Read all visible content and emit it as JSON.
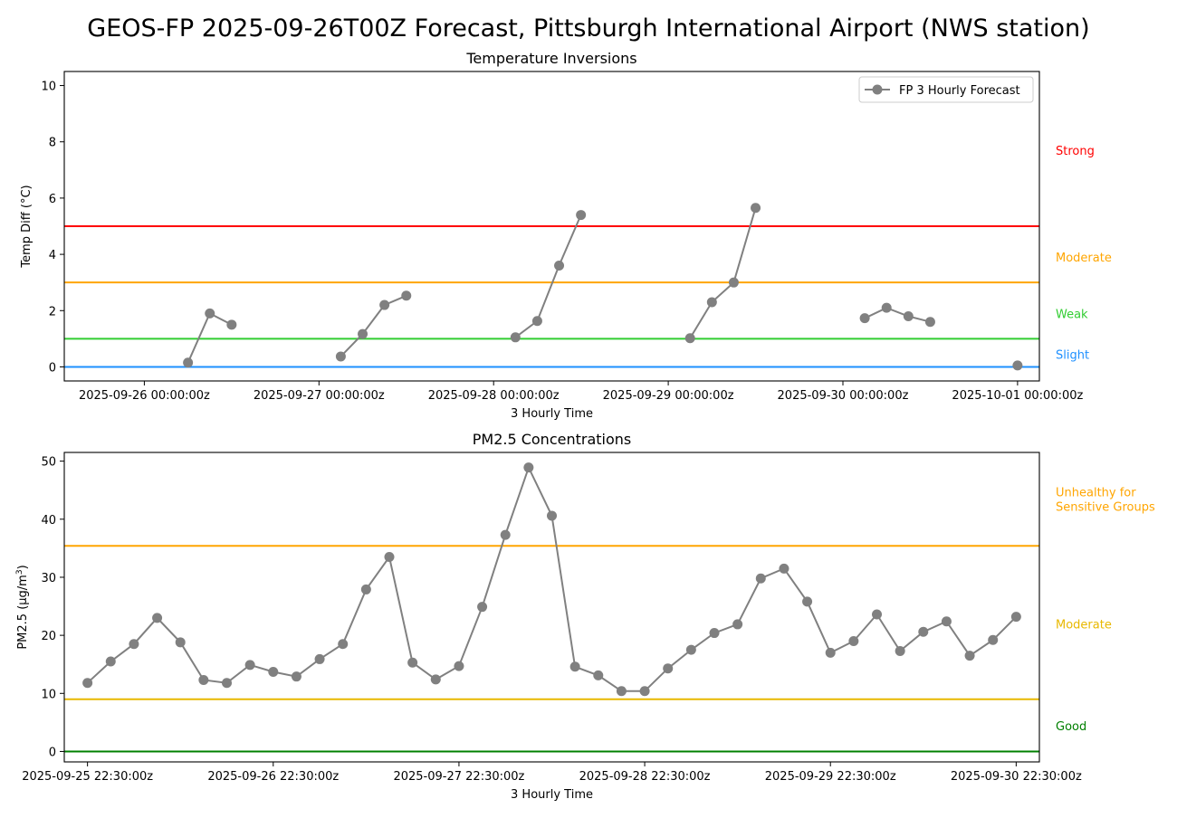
{
  "page": {
    "suptitle": "GEOS-FP 2025-09-26T00Z Forecast, Pittsburgh International Airport (NWS station)"
  },
  "chart_data": [
    {
      "type": "line",
      "title": "Temperature Inversions",
      "xlabel": "3 Hourly Time",
      "ylabel": "Temp Diff (°C)",
      "x_is_time": true,
      "xlim": [
        "2025-09-25T13:00:00Z",
        "2025-10-01T03:00:00Z"
      ],
      "ylim": [
        -0.5,
        10.5
      ],
      "yticks": [
        0,
        2,
        4,
        6,
        8,
        10
      ],
      "xtick_labels": [
        {
          "t": "2025-09-26T00:00:00Z",
          "label": "2025-09-26 00:00:00z"
        },
        {
          "t": "2025-09-27T00:00:00Z",
          "label": "2025-09-27 00:00:00z"
        },
        {
          "t": "2025-09-28T00:00:00Z",
          "label": "2025-09-28 00:00:00z"
        },
        {
          "t": "2025-09-29T00:00:00Z",
          "label": "2025-09-29 00:00:00z"
        },
        {
          "t": "2025-09-30T00:00:00Z",
          "label": "2025-09-30 00:00:00z"
        },
        {
          "t": "2025-10-01T00:00:00Z",
          "label": "2025-10-01 00:00:00z"
        }
      ],
      "legend": {
        "label": "FP 3 Hourly Forecast",
        "position": "upper right"
      },
      "series": [
        {
          "name": "FP 3 Hourly Forecast",
          "color": "#808080",
          "points": [
            {
              "t": "2025-09-26T06:00:00Z",
              "y": 0.15
            },
            {
              "t": "2025-09-26T09:00:00Z",
              "y": 1.9
            },
            {
              "t": "2025-09-26T12:00:00Z",
              "y": 1.5
            },
            {
              "t": "2025-09-26T15:00:00Z",
              "y": null
            },
            {
              "t": "2025-09-27T03:00:00Z",
              "y": 0.37
            },
            {
              "t": "2025-09-27T06:00:00Z",
              "y": 1.17
            },
            {
              "t": "2025-09-27T09:00:00Z",
              "y": 2.2
            },
            {
              "t": "2025-09-27T12:00:00Z",
              "y": 2.53
            },
            {
              "t": "2025-09-27T15:00:00Z",
              "y": null
            },
            {
              "t": "2025-09-28T03:00:00Z",
              "y": 1.05
            },
            {
              "t": "2025-09-28T06:00:00Z",
              "y": 1.63
            },
            {
              "t": "2025-09-28T09:00:00Z",
              "y": 3.6
            },
            {
              "t": "2025-09-28T12:00:00Z",
              "y": 5.4
            },
            {
              "t": "2025-09-28T15:00:00Z",
              "y": null
            },
            {
              "t": "2025-09-29T03:00:00Z",
              "y": 1.02
            },
            {
              "t": "2025-09-29T06:00:00Z",
              "y": 2.3
            },
            {
              "t": "2025-09-29T09:00:00Z",
              "y": 3.0
            },
            {
              "t": "2025-09-29T12:00:00Z",
              "y": 5.65
            },
            {
              "t": "2025-09-29T15:00:00Z",
              "y": null
            },
            {
              "t": "2025-09-30T03:00:00Z",
              "y": 1.73
            },
            {
              "t": "2025-09-30T06:00:00Z",
              "y": 2.1
            },
            {
              "t": "2025-09-30T09:00:00Z",
              "y": 1.8
            },
            {
              "t": "2025-09-30T12:00:00Z",
              "y": 1.6
            },
            {
              "t": "2025-09-30T15:00:00Z",
              "y": null
            },
            {
              "t": "2025-10-01T00:00:00Z",
              "y": 0.05
            }
          ]
        }
      ],
      "thresholds": [
        {
          "y": 5,
          "color": "#ff0000"
        },
        {
          "y": 3,
          "color": "#ffa500"
        },
        {
          "y": 1,
          "color": "#32cd32"
        },
        {
          "y": 0,
          "color": "#1e90ff"
        }
      ],
      "category_labels": [
        {
          "label": "Strong",
          "y": 7.7,
          "color": "#ff0000"
        },
        {
          "label": "Moderate",
          "y": 3.9,
          "color": "#ffa500"
        },
        {
          "label": "Weak",
          "y": 1.9,
          "color": "#32cd32"
        },
        {
          "label": "Slight",
          "y": 0.45,
          "color": "#1e90ff"
        }
      ]
    },
    {
      "type": "line",
      "title": "PM2.5 Concentrations",
      "xlabel": "3 Hourly Time",
      "ylabel_main": "PM2.5 (µg/m",
      "ylabel_sup": "3",
      "ylabel_end": ")",
      "x_is_time": true,
      "xlim": [
        "2025-09-25T19:30:00Z",
        "2025-10-01T01:30:00Z"
      ],
      "ylim": [
        -1.8,
        51.5
      ],
      "yticks": [
        0,
        10,
        20,
        30,
        40,
        50
      ],
      "xtick_labels": [
        {
          "t": "2025-09-25T22:30:00Z",
          "label": "2025-09-25 22:30:00z"
        },
        {
          "t": "2025-09-26T22:30:00Z",
          "label": "2025-09-26 22:30:00z"
        },
        {
          "t": "2025-09-27T22:30:00Z",
          "label": "2025-09-27 22:30:00z"
        },
        {
          "t": "2025-09-28T22:30:00Z",
          "label": "2025-09-28 22:30:00z"
        },
        {
          "t": "2025-09-29T22:30:00Z",
          "label": "2025-09-29 22:30:00z"
        },
        {
          "t": "2025-09-30T22:30:00Z",
          "label": "2025-09-30 22:30:00z"
        }
      ],
      "series": [
        {
          "color": "#808080",
          "points": [
            {
              "t": "2025-09-25T22:30:00Z",
              "y": 11.8
            },
            {
              "t": "2025-09-26T01:30:00Z",
              "y": 15.5
            },
            {
              "t": "2025-09-26T04:30:00Z",
              "y": 18.5
            },
            {
              "t": "2025-09-26T07:30:00Z",
              "y": 23.0
            },
            {
              "t": "2025-09-26T10:30:00Z",
              "y": 18.8
            },
            {
              "t": "2025-09-26T13:30:00Z",
              "y": 12.3
            },
            {
              "t": "2025-09-26T16:30:00Z",
              "y": 11.8
            },
            {
              "t": "2025-09-26T19:30:00Z",
              "y": 14.9
            },
            {
              "t": "2025-09-26T22:30:00Z",
              "y": 13.7
            },
            {
              "t": "2025-09-27T01:30:00Z",
              "y": 12.9
            },
            {
              "t": "2025-09-27T04:30:00Z",
              "y": 15.9
            },
            {
              "t": "2025-09-27T07:30:00Z",
              "y": 18.5
            },
            {
              "t": "2025-09-27T10:30:00Z",
              "y": 27.9
            },
            {
              "t": "2025-09-27T13:30:00Z",
              "y": 33.5
            },
            {
              "t": "2025-09-27T16:30:00Z",
              "y": 15.3
            },
            {
              "t": "2025-09-27T19:30:00Z",
              "y": 12.4
            },
            {
              "t": "2025-09-27T22:30:00Z",
              "y": 14.7
            },
            {
              "t": "2025-09-28T01:30:00Z",
              "y": 24.9
            },
            {
              "t": "2025-09-28T04:30:00Z",
              "y": 37.3
            },
            {
              "t": "2025-09-28T07:30:00Z",
              "y": 48.9
            },
            {
              "t": "2025-09-28T10:30:00Z",
              "y": 40.6
            },
            {
              "t": "2025-09-28T13:30:00Z",
              "y": 14.6
            },
            {
              "t": "2025-09-28T16:30:00Z",
              "y": 13.1
            },
            {
              "t": "2025-09-28T19:30:00Z",
              "y": 10.4
            },
            {
              "t": "2025-09-28T22:30:00Z",
              "y": 10.4
            },
            {
              "t": "2025-09-29T01:30:00Z",
              "y": 14.3
            },
            {
              "t": "2025-09-29T04:30:00Z",
              "y": 17.5
            },
            {
              "t": "2025-09-29T07:30:00Z",
              "y": 20.4
            },
            {
              "t": "2025-09-29T10:30:00Z",
              "y": 21.9
            },
            {
              "t": "2025-09-29T13:30:00Z",
              "y": 29.8
            },
            {
              "t": "2025-09-29T16:30:00Z",
              "y": 31.5
            },
            {
              "t": "2025-09-29T19:30:00Z",
              "y": 25.8
            },
            {
              "t": "2025-09-29T22:30:00Z",
              "y": 17.0
            },
            {
              "t": "2025-09-30T01:30:00Z",
              "y": 19.0
            },
            {
              "t": "2025-09-30T04:30:00Z",
              "y": 23.6
            },
            {
              "t": "2025-09-30T07:30:00Z",
              "y": 17.3
            },
            {
              "t": "2025-09-30T10:30:00Z",
              "y": 20.6
            },
            {
              "t": "2025-09-30T13:30:00Z",
              "y": 22.4
            },
            {
              "t": "2025-09-30T16:30:00Z",
              "y": 16.5
            },
            {
              "t": "2025-09-30T19:30:00Z",
              "y": 19.2
            },
            {
              "t": "2025-09-30T22:30:00Z",
              "y": 23.2
            }
          ]
        }
      ],
      "thresholds": [
        {
          "y": 35.4,
          "color": "#ffa500"
        },
        {
          "y": 9.0,
          "color": "#e8b800"
        },
        {
          "y": 0,
          "color": "#008000"
        }
      ],
      "category_labels": [
        {
          "lines": [
            "Unhealthy for",
            "Sensitive Groups"
          ],
          "y": 43.5,
          "color": "#ffa500"
        },
        {
          "lines": [
            "Moderate"
          ],
          "y": 22.0,
          "color": "#e8b800"
        },
        {
          "lines": [
            "Good"
          ],
          "y": 4.4,
          "color": "#008000"
        }
      ]
    }
  ]
}
